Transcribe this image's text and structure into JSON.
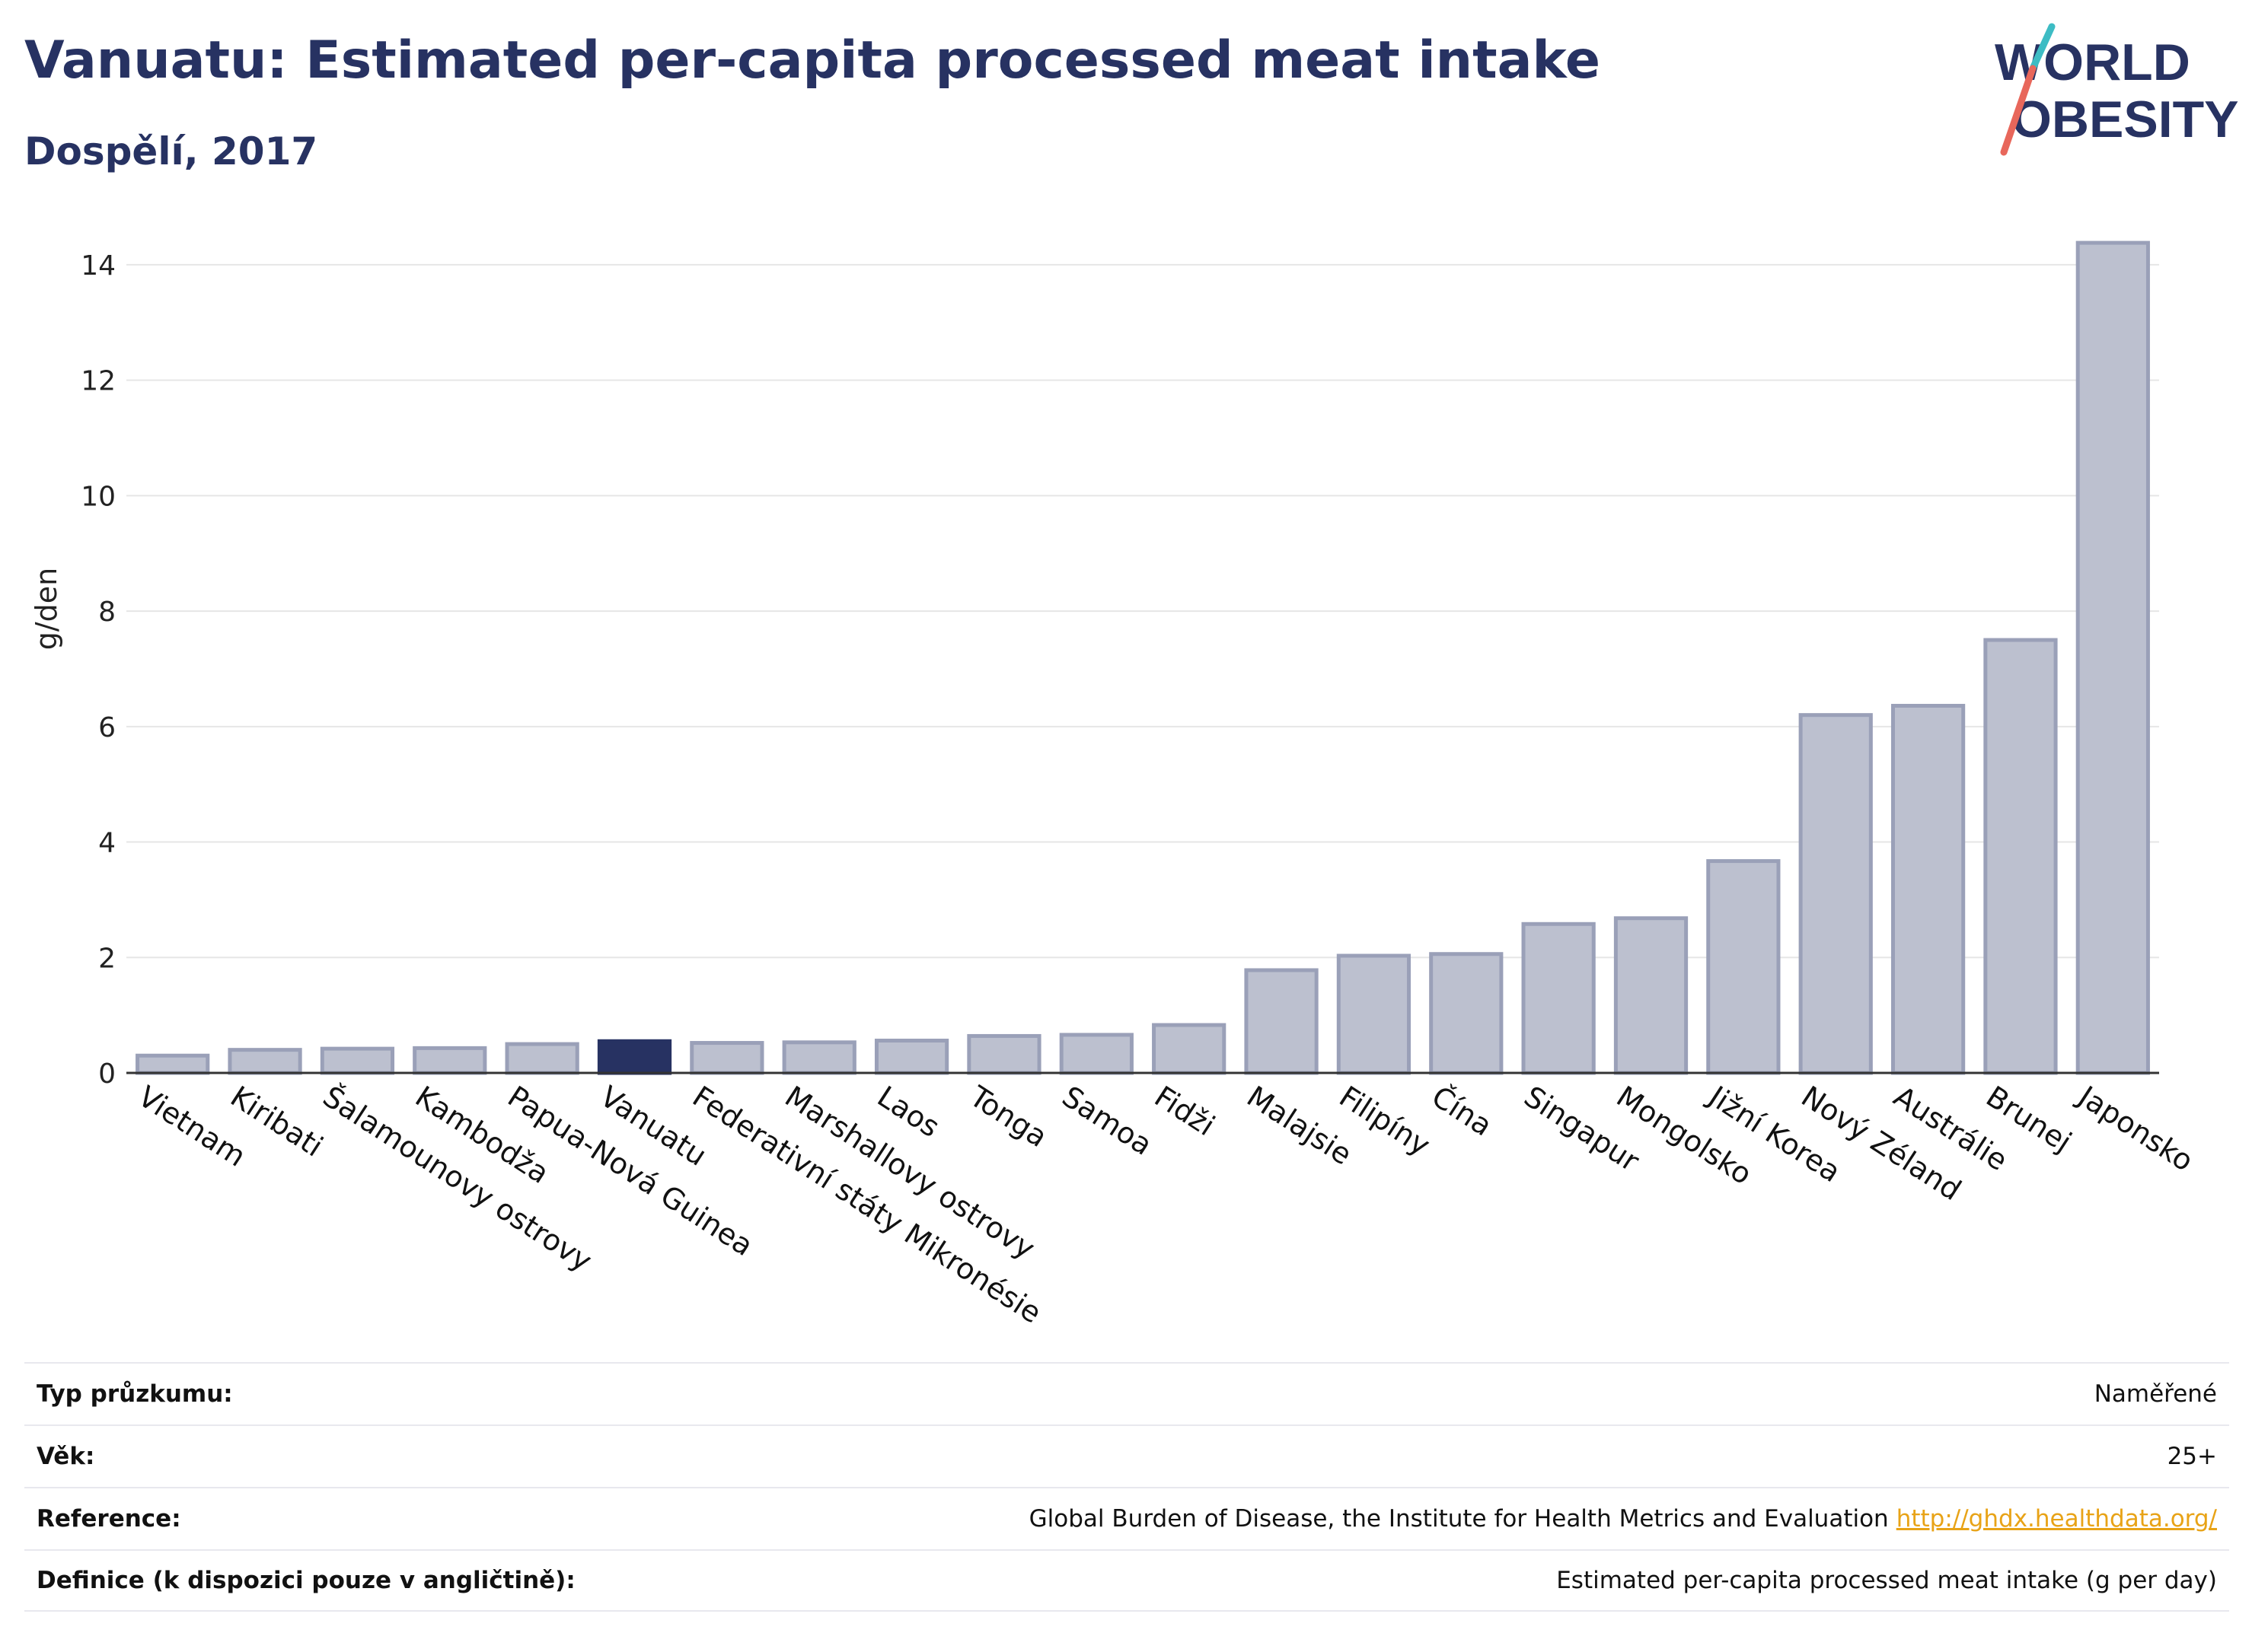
{
  "header": {
    "title": "Vanuatu: Estimated per-capita processed meat intake",
    "subtitle": "Dospělí, 2017"
  },
  "logo": {
    "line1": "WORLD",
    "line2": "OBESITY"
  },
  "colors": {
    "bar": "#bcc0cf",
    "bar_edge": "#9aa0b8",
    "highlight": "#273262",
    "axis": "#333333",
    "grid": "#e6e6e6",
    "title": "#273262",
    "link": "#e8a317"
  },
  "chart_data": {
    "type": "bar",
    "title": "Vanuatu: Estimated per-capita processed meat intake",
    "subtitle": "Dospělí, 2017",
    "xlabel": "",
    "ylabel": "g/den",
    "ylim": [
      0,
      14.5
    ],
    "yticks": [
      0,
      2,
      4,
      6,
      8,
      10,
      12,
      14
    ],
    "grid": true,
    "highlight": "Vanuatu",
    "categories": [
      "Vietnam",
      "Kiribati",
      "Šalamounovy ostrovy",
      "Kambodža",
      "Papua-Nová Guinea",
      "Vanuatu",
      "Federativní státy Mikronésie",
      "Marshallovy ostrovy",
      "Laos",
      "Tonga",
      "Samoa",
      "Fidži",
      "Malajsie",
      "Filipíny",
      "Čína",
      "Singapur",
      "Mongolsko",
      "Jižní Korea",
      "Nový Zéland",
      "Austrálie",
      "Brunej",
      "Japonsko"
    ],
    "values": [
      0.3,
      0.4,
      0.42,
      0.43,
      0.5,
      0.55,
      0.52,
      0.53,
      0.56,
      0.64,
      0.66,
      0.83,
      1.78,
      2.03,
      2.06,
      2.58,
      2.68,
      3.67,
      6.2,
      6.36,
      7.5,
      14.38
    ]
  },
  "info": [
    {
      "label": "Typ průzkumu:",
      "value": "Naměřené"
    },
    {
      "label": "Věk:",
      "value": "25+"
    },
    {
      "label": "Reference:",
      "value": "Global Burden of Disease, the Institute for Health Metrics and Evaluation",
      "link": "http://ghdx.healthdata.org/"
    },
    {
      "label": "Definice (k dispozici pouze v angličtině):",
      "value": "Estimated per-capita processed meat intake (g per day)"
    }
  ]
}
